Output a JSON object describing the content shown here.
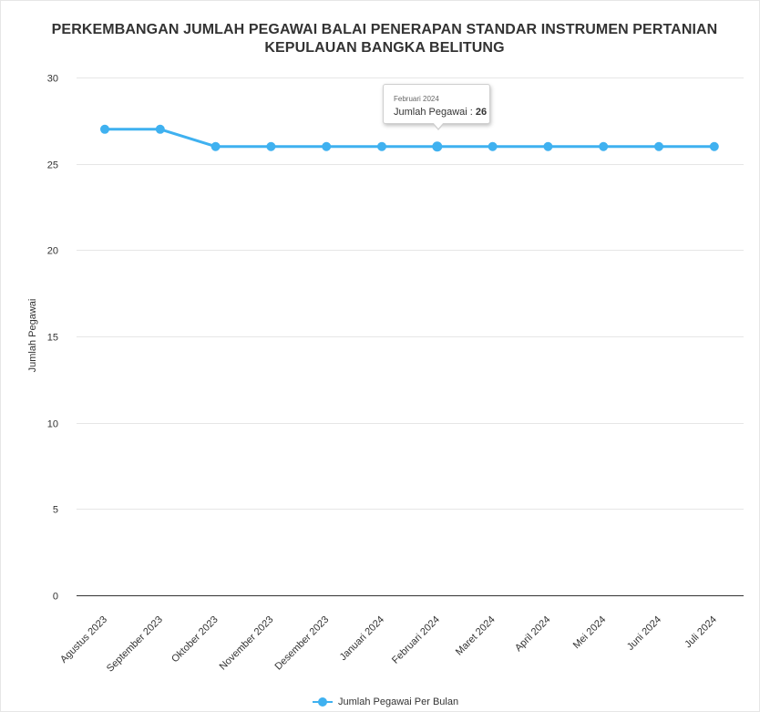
{
  "chart_data": {
    "type": "line",
    "title_lines": [
      "PERKEMBANGAN JUMLAH PEGAWAI BALAI PENERAPAN STANDAR INSTRUMEN PERTANIAN",
      "KEPULAUAN BANGKA BELITUNG"
    ],
    "ylabel": "Jumlah Pegawai",
    "xlabel": "",
    "ylim": [
      0,
      30
    ],
    "yticks": [
      0,
      5,
      10,
      15,
      20,
      25,
      30
    ],
    "grid": true,
    "legend_position": "bottom-center",
    "categories": [
      "Agustus 2023",
      "September 2023",
      "Oktober 2023",
      "November 2023",
      "Desember 2023",
      "Januari 2024",
      "Februari 2024",
      "Maret 2024",
      "April 2024",
      "Mei 2024",
      "Juni 2024",
      "Juli 2024"
    ],
    "series": [
      {
        "name": "Jumlah Pegawai Per Bulan",
        "color": "#3fb1f0",
        "values": [
          27,
          27,
          26,
          26,
          26,
          26,
          26,
          26,
          26,
          26,
          26,
          26
        ]
      }
    ],
    "tooltip": {
      "header": "Februari 2024",
      "label": "Jumlah Pegawai : ",
      "value": "26"
    }
  }
}
